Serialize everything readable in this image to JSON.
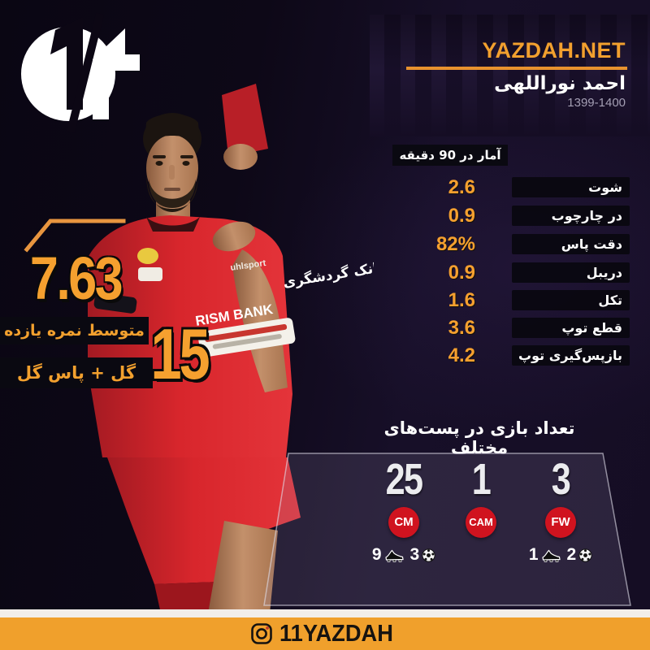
{
  "brand": {
    "site_label": "YAZDAH.NET",
    "instagram_handle": "11YAZDAH",
    "logo_name": "yazdah-eleven-logo"
  },
  "header": {
    "player_name": "احمد نوراللهی",
    "season": "1399-1400"
  },
  "rating": {
    "value": "7.63",
    "caption": "متوسط نمره یازده"
  },
  "goal_contributions": {
    "value": "15",
    "caption": "گل + پاس گل"
  },
  "per90": {
    "title": "آمار در 90 دقیقه",
    "rows": [
      {
        "label": "شوت",
        "value": "2.6"
      },
      {
        "label": "در چارچوب",
        "value": "0.9"
      },
      {
        "label": "دقت پاس",
        "value": "82%"
      },
      {
        "label": "دریبل",
        "value": "0.9"
      },
      {
        "label": "تکل",
        "value": "1.6"
      },
      {
        "label": "قطع توپ",
        "value": "3.6"
      },
      {
        "label": "بازپس‌گیری توپ",
        "value": "4.2"
      }
    ]
  },
  "positions": {
    "title": "تعداد بازی در پست‌های مختلف",
    "columns": [
      {
        "code": "CM",
        "matches": "25",
        "boot_count": "9",
        "ball_count": "3"
      },
      {
        "code": "CAM",
        "matches": "1",
        "boot_count": null,
        "ball_count": null
      },
      {
        "code": "FW",
        "matches": "3",
        "boot_count": "1",
        "ball_count": "2"
      }
    ]
  },
  "jersey": {
    "patch_line1": "بانک گردشگری",
    "patch_line2": "RISM BANK",
    "sponsor": "uhlsport"
  },
  "colors": {
    "accent_orange": "#F2A02E",
    "values_orange": "#F5A02F",
    "jersey_red": "#D8262C",
    "badge_red": "#D0131F",
    "bar_black": "#0A0911",
    "background_dark": "#150D24",
    "footer_orange": "#F0A02C"
  },
  "chart_data": {
    "type": "table",
    "title": "آمار در 90 دقیقه",
    "columns": [
      "metric",
      "per_90_value"
    ],
    "rows": [
      [
        "شوت",
        2.6
      ],
      [
        "در چارچوب",
        0.9
      ],
      [
        "دقت پاس",
        "82%"
      ],
      [
        "دریبل",
        0.9
      ],
      [
        "تکل",
        1.6
      ],
      [
        "قطع توپ",
        3.6
      ],
      [
        "بازپس‌گیری توپ",
        4.2
      ]
    ],
    "summary": {
      "average_rating": 7.63,
      "goals_plus_assists": 15,
      "matches_by_position": [
        {
          "position": "CM",
          "matches": 25,
          "boot_icon_count": 9,
          "ball_icon_count": 3
        },
        {
          "position": "CAM",
          "matches": 1
        },
        {
          "position": "FW",
          "matches": 3,
          "boot_icon_count": 1,
          "ball_icon_count": 2
        }
      ]
    }
  }
}
